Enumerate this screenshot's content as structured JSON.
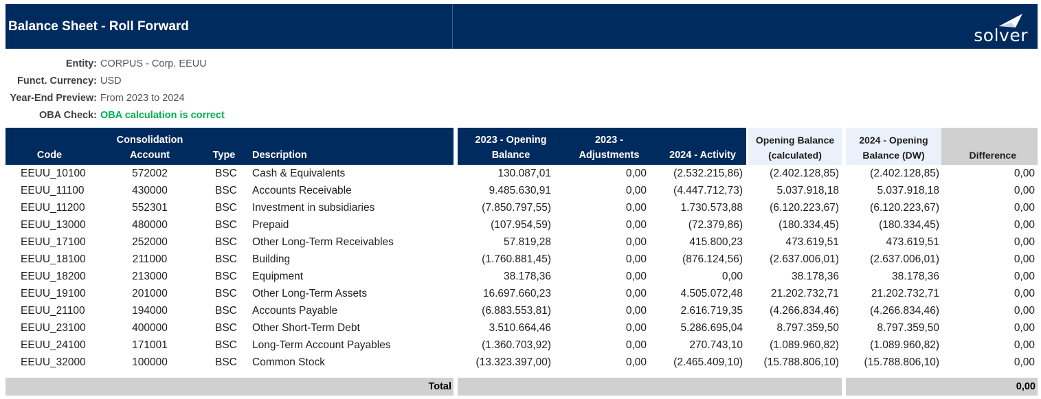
{
  "report": {
    "title": "Balance Sheet - Roll Forward",
    "brand": "solver"
  },
  "info": [
    {
      "label": "Entity:",
      "value": "CORPUS - Corp. EEUU"
    },
    {
      "label": "Funct. Currency:",
      "value": "USD"
    },
    {
      "label": "Year-End Preview:",
      "value": "From 2023 to 2024"
    },
    {
      "label": "OBA Check:",
      "value": "OBA calculation is correct"
    }
  ],
  "columns": {
    "code": "Code",
    "account": "Consolidation\nAccount",
    "type": "Type",
    "description": "Description",
    "opening": "2023 - Opening\nBalance",
    "adjustments": "2023 -\nAdjustments",
    "activity": "2024 - Activity",
    "calculated": "Opening Balance\n(calculated)",
    "dw": "2024 - Opening\nBalance (DW)",
    "difference": "Difference"
  },
  "rows": [
    {
      "code": "EEUU_10100",
      "account": "572002",
      "type": "BSC",
      "description": "Cash & Equivalents",
      "opening": "130.087,01",
      "adjustments": "0,00",
      "activity": "(2.532.215,86)",
      "calculated": "(2.402.128,85)",
      "dw": "(2.402.128,85)",
      "difference": "0,00"
    },
    {
      "code": "EEUU_11100",
      "account": "430000",
      "type": "BSC",
      "description": "Accounts Receivable",
      "opening": "9.485.630,91",
      "adjustments": "0,00",
      "activity": "(4.447.712,73)",
      "calculated": "5.037.918,18",
      "dw": "5.037.918,18",
      "difference": "0,00"
    },
    {
      "code": "EEUU_11200",
      "account": "552301",
      "type": "BSC",
      "description": "Investment in subsidiaries",
      "opening": "(7.850.797,55)",
      "adjustments": "0,00",
      "activity": "1.730.573,88",
      "calculated": "(6.120.223,67)",
      "dw": "(6.120.223,67)",
      "difference": "0,00"
    },
    {
      "code": "EEUU_13000",
      "account": "480000",
      "type": "BSC",
      "description": "Prepaid",
      "opening": "(107.954,59)",
      "adjustments": "0,00",
      "activity": "(72.379,86)",
      "calculated": "(180.334,45)",
      "dw": "(180.334,45)",
      "difference": "0,00"
    },
    {
      "code": "EEUU_17100",
      "account": "252000",
      "type": "BSC",
      "description": "Other Long-Term Receivables",
      "opening": "57.819,28",
      "adjustments": "0,00",
      "activity": "415.800,23",
      "calculated": "473.619,51",
      "dw": "473.619,51",
      "difference": "0,00"
    },
    {
      "code": "EEUU_18100",
      "account": "211000",
      "type": "BSC",
      "description": "Building",
      "opening": "(1.760.881,45)",
      "adjustments": "0,00",
      "activity": "(876.124,56)",
      "calculated": "(2.637.006,01)",
      "dw": "(2.637.006,01)",
      "difference": "0,00"
    },
    {
      "code": "EEUU_18200",
      "account": "213000",
      "type": "BSC",
      "description": "Equipment",
      "opening": "38.178,36",
      "adjustments": "0,00",
      "activity": "0,00",
      "calculated": "38.178,36",
      "dw": "38.178,36",
      "difference": "0,00"
    },
    {
      "code": "EEUU_19100",
      "account": "201000",
      "type": "BSC",
      "description": "Other Long-Term Assets",
      "opening": "16.697.660,23",
      "adjustments": "0,00",
      "activity": "4.505.072,48",
      "calculated": "21.202.732,71",
      "dw": "21.202.732,71",
      "difference": "0,00"
    },
    {
      "code": "EEUU_21100",
      "account": "194000",
      "type": "BSC",
      "description": "Accounts Payable",
      "opening": "(6.883.553,81)",
      "adjustments": "0,00",
      "activity": "2.616.719,35",
      "calculated": "(4.266.834,46)",
      "dw": "(4.266.834,46)",
      "difference": "0,00"
    },
    {
      "code": "EEUU_23100",
      "account": "400000",
      "type": "BSC",
      "description": "Other Short-Term Debt",
      "opening": "3.510.664,46",
      "adjustments": "0,00",
      "activity": "5.286.695,04",
      "calculated": "8.797.359,50",
      "dw": "8.797.359,50",
      "difference": "0,00"
    },
    {
      "code": "EEUU_24100",
      "account": "171001",
      "type": "BSC",
      "description": "Long-Term Account Payables",
      "opening": "(1.360.703,92)",
      "adjustments": "0,00",
      "activity": "270.743,10",
      "calculated": "(1.089.960,82)",
      "dw": "(1.089.960,82)",
      "difference": "0,00"
    },
    {
      "code": "EEUU_32000",
      "account": "100000",
      "type": "BSC",
      "description": "Common Stock",
      "opening": "(13.323.397,00)",
      "adjustments": "0,00",
      "activity": "(2.465.409,10)",
      "calculated": "(15.788.806,10)",
      "dw": "(15.788.806,10)",
      "difference": "0,00"
    }
  ],
  "total": {
    "label": "Total",
    "difference": "0,00"
  },
  "colors": {
    "header_navy": "#002b5e",
    "header_light": "#eaf1fb",
    "header_grey": "#d0d0d0",
    "ok_green": "#00b050"
  }
}
